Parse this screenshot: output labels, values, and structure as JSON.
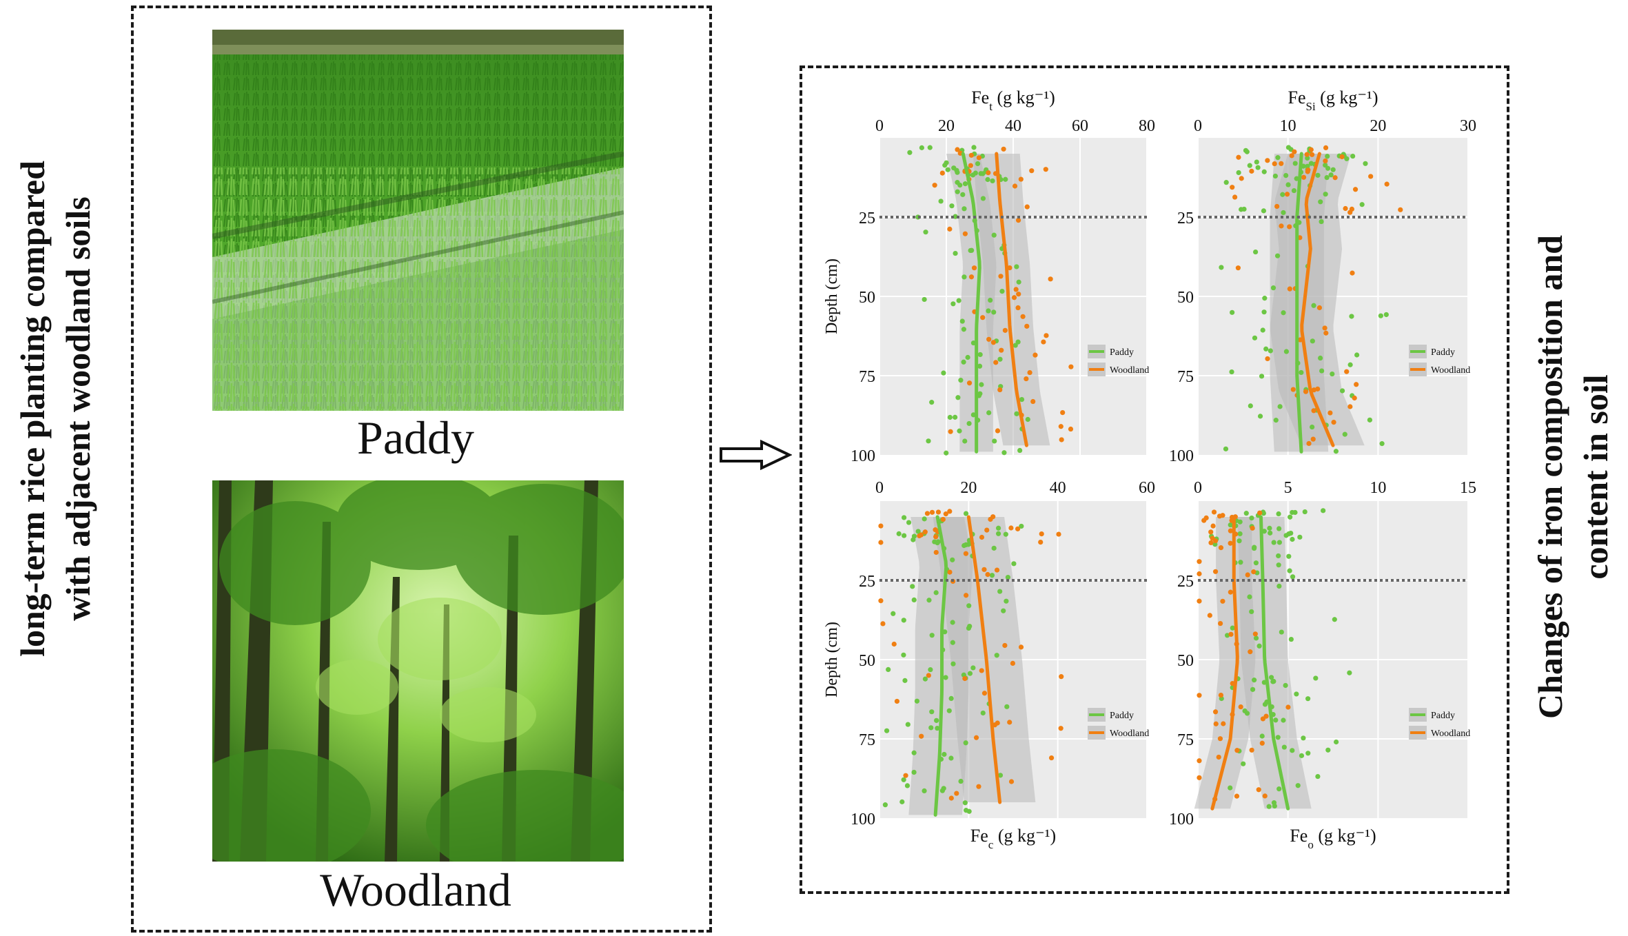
{
  "left_title": [
    "long-term rice planting compared",
    "with adjacent woodland soils"
  ],
  "right_title": [
    "Changes of iron composition and",
    "content in soil"
  ],
  "photos": {
    "paddy": {
      "caption": "Paddy"
    },
    "woodland": {
      "caption": "Woodland"
    }
  },
  "colors": {
    "paddy": "#6cc644",
    "woodland": "#f07f12",
    "band": "#b8b8b8",
    "panel_bg": "#ebebeb"
  },
  "legend": {
    "paddy": "Paddy",
    "woodland": "Woodland"
  },
  "chart_data": [
    {
      "type": "scatter",
      "xlabel_main": "Fe",
      "xlabel_sub": "t",
      "xlabel_unit": " (g kg⁻¹)",
      "xlabel_pos": "top",
      "ylabel": "Depth (cm)",
      "xlim": [
        0,
        80
      ],
      "xticks": [
        "0",
        "20",
        "40",
        "60",
        "80"
      ],
      "ylim": [
        0,
        100
      ],
      "yticks": [
        "25",
        "50",
        "75",
        "100"
      ],
      "reference_line_depth": 25,
      "series": [
        {
          "name": "Paddy",
          "smooth": [
            [
              5,
              25
            ],
            [
              20,
              28
            ],
            [
              40,
              30
            ],
            [
              60,
              29
            ],
            [
              80,
              29
            ],
            [
              100,
              29
            ]
          ],
          "band": 5
        },
        {
          "name": "Woodland",
          "smooth": [
            [
              5,
              35
            ],
            [
              20,
              36
            ],
            [
              40,
              38
            ],
            [
              60,
              39
            ],
            [
              80,
              41
            ],
            [
              97,
              44
            ]
          ],
          "band": 7
        }
      ]
    },
    {
      "type": "scatter",
      "xlabel_main": "Fe",
      "xlabel_sub": "Si",
      "xlabel_unit": " (g kg⁻¹)",
      "xlabel_pos": "top",
      "ylabel": "",
      "xlim": [
        0,
        30
      ],
      "xticks": [
        "0",
        "10",
        "20",
        "30"
      ],
      "ylim": [
        0,
        100
      ],
      "yticks": [
        "25",
        "50",
        "75",
        "100"
      ],
      "reference_line_depth": 25,
      "series": [
        {
          "name": "Paddy",
          "smooth": [
            [
              5,
              11.5
            ],
            [
              25,
              11
            ],
            [
              50,
              11
            ],
            [
              75,
              11
            ],
            [
              100,
              11.5
            ]
          ],
          "band": 3
        },
        {
          "name": "Woodland",
          "smooth": [
            [
              5,
              13.5
            ],
            [
              20,
              12
            ],
            [
              35,
              12.5
            ],
            [
              60,
              11.5
            ],
            [
              80,
              12.5
            ],
            [
              97,
              15
            ]
          ],
          "band": 3.5
        }
      ]
    },
    {
      "type": "scatter",
      "xlabel_main": "Fe",
      "xlabel_sub": "c",
      "xlabel_unit": " (g kg⁻¹)",
      "xlabel_pos": "bottom",
      "ylabel": "Depth (cm)",
      "xlim": [
        0,
        60
      ],
      "xticks": [
        "0",
        "20",
        "40",
        "60"
      ],
      "ylim": [
        0,
        100
      ],
      "yticks": [
        "25",
        "50",
        "75",
        "100"
      ],
      "reference_line_depth": 25,
      "series": [
        {
          "name": "Paddy",
          "smooth": [
            [
              5,
              13
            ],
            [
              20,
              15
            ],
            [
              40,
              14
            ],
            [
              60,
              14
            ],
            [
              80,
              13.5
            ],
            [
              100,
              12.5
            ]
          ],
          "band": 6
        },
        {
          "name": "Woodland",
          "smooth": [
            [
              5,
              20
            ],
            [
              25,
              22
            ],
            [
              50,
              24
            ],
            [
              75,
              25.5
            ],
            [
              95,
              27
            ]
          ],
          "band": 8
        }
      ]
    },
    {
      "type": "scatter",
      "xlabel_main": "Fe",
      "xlabel_sub": "o",
      "xlabel_unit": " (g kg⁻¹)",
      "xlabel_pos": "bottom",
      "ylabel": "",
      "xlim": [
        0,
        15
      ],
      "xticks": [
        "0",
        "5",
        "10",
        "15"
      ],
      "ylim": [
        0,
        100
      ],
      "yticks": [
        "25",
        "50",
        "75",
        "100"
      ],
      "reference_line_depth": 25,
      "series": [
        {
          "name": "Paddy",
          "smooth": [
            [
              5,
              3.5
            ],
            [
              25,
              3.6
            ],
            [
              50,
              3.7
            ],
            [
              75,
              4.2
            ],
            [
              97,
              5
            ]
          ],
          "band": 1.3
        },
        {
          "name": "Woodland",
          "smooth": [
            [
              5,
              2
            ],
            [
              25,
              2
            ],
            [
              50,
              2.2
            ],
            [
              75,
              1.8
            ],
            [
              97,
              0.8
            ]
          ],
          "band": 1
        }
      ]
    }
  ]
}
